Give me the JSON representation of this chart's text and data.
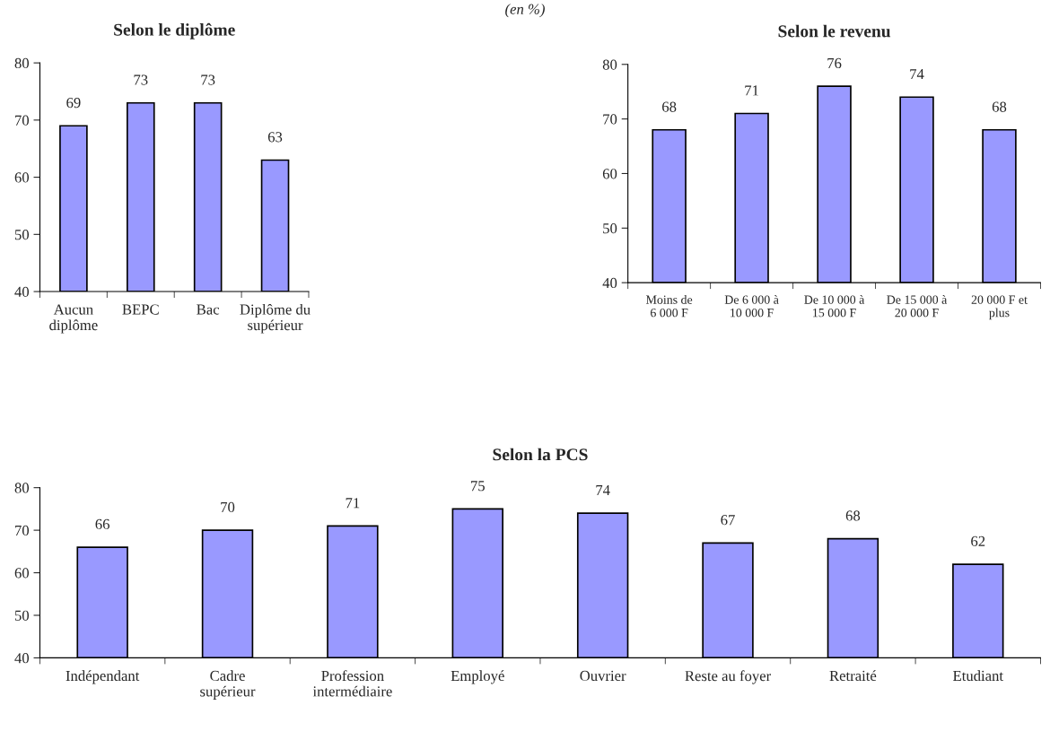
{
  "chart_data": [
    {
      "type": "bar",
      "title": "Selon le diplôme",
      "annotations": [
        "(en %)"
      ],
      "categories": [
        "Aucun\ndiplôme",
        "BEPC",
        "Bac",
        "Diplôme du\nsupérieur"
      ],
      "values": [
        69,
        73,
        73,
        63
      ],
      "color": "#9999ff",
      "ylim": [
        40,
        80
      ],
      "yticks": [
        40,
        50,
        60,
        70,
        80
      ],
      "data_labels": true,
      "grid": false
    },
    {
      "type": "bar",
      "title": "Selon le revenu",
      "categories": [
        "Moins de\n6 000 F",
        "De 6 000 à\n10 000 F",
        "De 10 000 à\n15 000 F",
        "De 15 000 à\n20 000 F",
        "20 000 F et\nplus"
      ],
      "values": [
        68,
        71,
        76,
        74,
        68
      ],
      "color": "#9999ff",
      "ylim": [
        40,
        80
      ],
      "yticks": [
        40,
        50,
        60,
        70,
        80
      ],
      "data_labels": true,
      "grid": false
    },
    {
      "type": "bar",
      "title": "Selon la PCS",
      "categories": [
        "Indépendant",
        "Cadre\nsupérieur",
        "Profession\nintermédiaire",
        "Employé",
        "Ouvrier",
        "Reste au foyer",
        "Retraité",
        "Etudiant"
      ],
      "values": [
        66,
        70,
        71,
        75,
        74,
        67,
        68,
        62
      ],
      "color": "#9999ff",
      "ylim": [
        40,
        80
      ],
      "yticks": [
        40,
        50,
        60,
        70,
        80
      ],
      "data_labels": true,
      "grid": false
    }
  ]
}
